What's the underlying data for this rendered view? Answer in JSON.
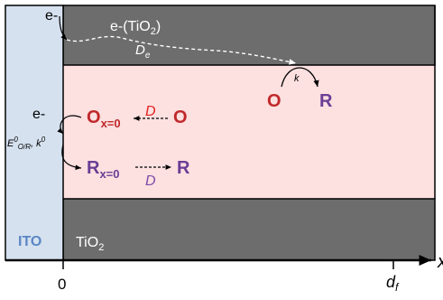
{
  "electrode": {
    "label": "ITO",
    "top_label": "e-",
    "mid_label": "e-",
    "rate_label_main": "E",
    "rate_label_sup": "0",
    "rate_label_sub": "O/R",
    "rate_label_comma": ", k",
    "rate_label_sup2": "0"
  },
  "tio2_top": {
    "label_main": "e-(TiO",
    "label_sub": "2",
    "label_close": ")",
    "diffusion_main": "D",
    "diffusion_sub": "e"
  },
  "tio2_bottom": {
    "label_main": "TiO",
    "label_sub": "2"
  },
  "solution": {
    "O_label": "O",
    "R_label": "R",
    "k_label": "k",
    "Ox0_main": "O",
    "Ox0_sub": "x=0",
    "Rx0_main": "R",
    "Rx0_sub": "x=0",
    "O_bulk": "O",
    "R_bulk": "R",
    "D_top": "D",
    "D_bottom": "D"
  },
  "axis": {
    "x_label": "x",
    "origin_label": "0",
    "df_main": "d",
    "df_sub": "f"
  },
  "colors": {
    "ito": "#d5e1ef",
    "ito_text": "#5b86c4",
    "tio2": "#6d6d6d",
    "solution": "#fde0e0",
    "O_red": "#c0282b",
    "R_purple": "#6a3d96",
    "D_red": "#e02020",
    "D_purple": "#7d4aa8"
  }
}
